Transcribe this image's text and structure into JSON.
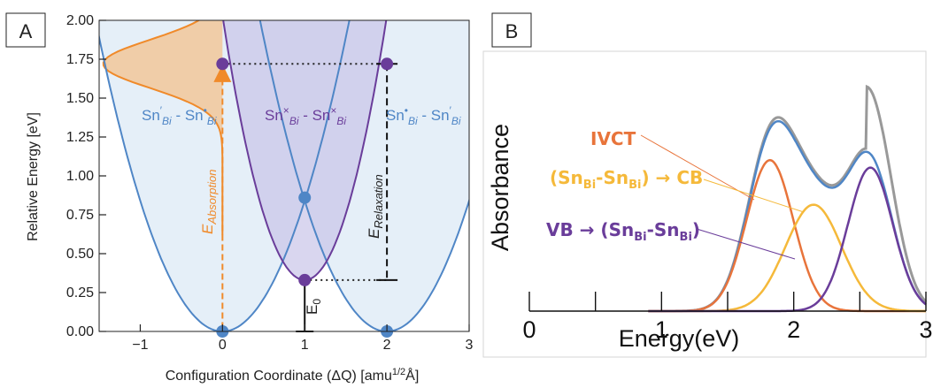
{
  "panels": {
    "a_label": "A",
    "b_label": "B"
  },
  "chart_data": [
    {
      "type": "line",
      "xlabel": "Configuration Coordinate (ΔQ) [amu",
      "xlabel_sup": "1/2",
      "xlabel_end": "Å]",
      "ylabel": "Relative Energy [eV]",
      "xlim": [
        -1.5,
        3
      ],
      "ylim": [
        0,
        2
      ],
      "xticks": [
        -1,
        0,
        1,
        2,
        3
      ],
      "yticks": [
        "0.00",
        "0.25",
        "0.50",
        "0.75",
        "1.00",
        "1.25",
        "1.50",
        "1.75",
        "2.00"
      ],
      "series": [
        {
          "center": 0,
          "offset": 0,
          "curvature": 0.84
        },
        {
          "center": 2,
          "offset": 0,
          "curvature": 0.84
        },
        {
          "center": 1,
          "offset": 0.33,
          "curvature": 1.7
        }
      ],
      "points": [
        {
          "x": 0,
          "y": 0
        },
        {
          "x": 2,
          "y": 0
        },
        {
          "x": 1,
          "y": 0.86
        },
        {
          "x": 1,
          "y": 0.33
        },
        {
          "x": 0,
          "y": 1.72
        },
        {
          "x": 2,
          "y": 1.72
        }
      ],
      "annotations": {
        "left_state": {
          "a": "Sn",
          "a_sup": "′",
          "a_sub": "Bi",
          "sep": " - ",
          "b": "Sn",
          "b_sup": "•",
          "b_sub": "Bi"
        },
        "mid_state": {
          "a": "Sn",
          "a_sup": "×",
          "a_sub": "Bi",
          "sep": " - ",
          "b": "Sn",
          "b_sup": "×",
          "b_sub": "Bi"
        },
        "right_state": {
          "a": "Sn",
          "a_sup": "•",
          "a_sub": "Bi",
          "sep": " - ",
          "b": "Sn",
          "b_sup": "′",
          "b_sub": "Bi"
        },
        "e_absorption": {
          "main": "E",
          "sub": "Absorption"
        },
        "e_relaxation": {
          "main": "E",
          "sub": "Relaxation"
        },
        "e0": {
          "main": "E",
          "sub": "0"
        }
      },
      "colors": {
        "blue": "#4f86c6",
        "purple": "#6a3d9a",
        "orange": "#f08a2a",
        "fill_blue": "#dce9f6",
        "fill_purple": "#c9c4e8",
        "fill_orange": "#f2c79a"
      }
    },
    {
      "type": "line",
      "xlabel": "Energy(eV)",
      "ylabel": "Absorbance",
      "xlim": [
        0,
        3
      ],
      "xticks": [
        "0",
        "1",
        "2",
        "3"
      ],
      "minor_xticks": [
        0.5,
        1.5,
        2.5
      ],
      "series": [
        {
          "name": "IVCT",
          "color": "#e8743b",
          "peak_x": 1.82,
          "amplitude": 0.61,
          "width": 0.25
        },
        {
          "name": "(SnBi-SnBi) → CB",
          "color": "#f5b93a",
          "peak_x": 2.15,
          "amplitude": 0.43,
          "width": 0.3
        },
        {
          "name": "VB → (SnBi-SnBi)",
          "color": "#6a3d9a",
          "peak_x": 2.58,
          "amplitude": 0.58,
          "width": 0.24
        },
        {
          "name": "total",
          "color": "#4f86c6"
        },
        {
          "name": "experiment",
          "color": "#999999"
        }
      ],
      "legend": {
        "ivct": "IVCT",
        "cb": {
          "open": "(Sn",
          "sub1": "Bi",
          "mid": "-Sn",
          "sub2": "Bi",
          "close": ")",
          "arrow": " → ",
          "tail": "CB"
        },
        "vb": {
          "head": "VB",
          "arrow": " → ",
          "open": "(Sn",
          "sub1": "Bi",
          "mid": "-Sn",
          "sub2": "Bi",
          "close": ")"
        }
      }
    }
  ]
}
